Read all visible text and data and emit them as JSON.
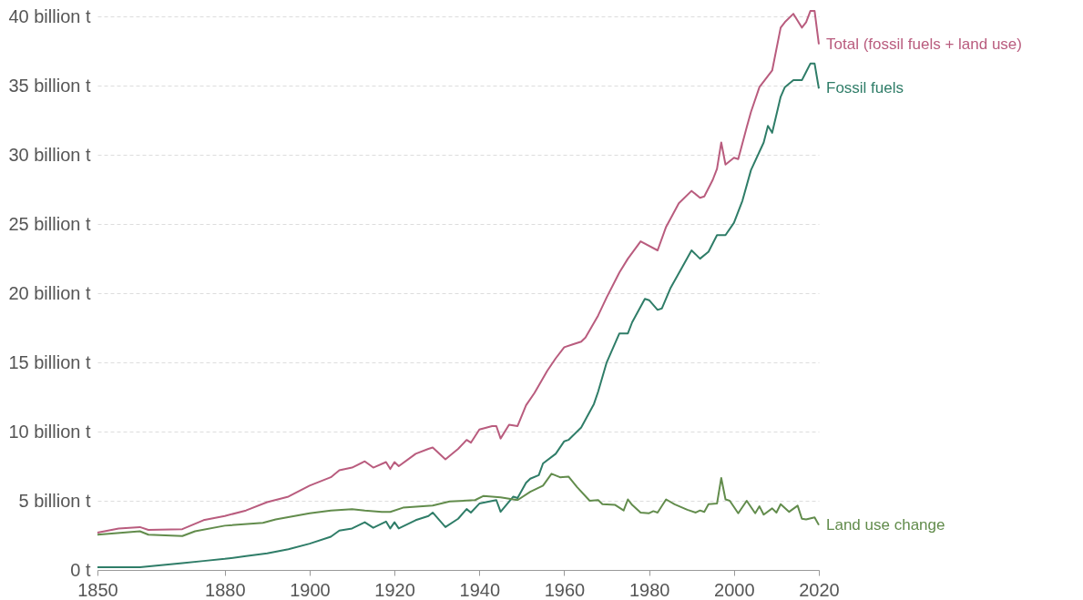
{
  "chart_data": {
    "type": "line",
    "xlim": [
      1850,
      2020
    ],
    "xticks": [
      1850,
      1880,
      1900,
      1920,
      1940,
      1960,
      1980,
      2000,
      2020
    ],
    "ylim": [
      0,
      41
    ],
    "yticks": [
      {
        "value": 0,
        "label": "0 t"
      },
      {
        "value": 5,
        "label": "5 billion t"
      },
      {
        "value": 10,
        "label": "10 billion t"
      },
      {
        "value": 15,
        "label": "15 billion t"
      },
      {
        "value": 20,
        "label": "20 billion t"
      },
      {
        "value": 25,
        "label": "25 billion t"
      },
      {
        "value": 30,
        "label": "30 billion t"
      },
      {
        "value": 35,
        "label": "35 billion t"
      },
      {
        "value": 40,
        "label": "40 billion t"
      }
    ],
    "grid": "y",
    "legend": false,
    "series": [
      {
        "name": "Total (fossil fuels + land use)",
        "color": "#b95c7e",
        "x": [
          1850,
          1855,
          1860,
          1862,
          1870,
          1875,
          1880,
          1885,
          1890,
          1895,
          1900,
          1905,
          1907,
          1910,
          1913,
          1915,
          1918,
          1919,
          1920,
          1921,
          1925,
          1928,
          1929,
          1932,
          1935,
          1937,
          1938,
          1940,
          1943,
          1944,
          1945,
          1947,
          1949,
          1951,
          1953,
          1956,
          1958,
          1960,
          1962,
          1964,
          1965,
          1968,
          1970,
          1973,
          1975,
          1978,
          1982,
          1984,
          1987,
          1990,
          1992,
          1993,
          1995,
          1996,
          1997,
          1998,
          2000,
          2001,
          2003,
          2004,
          2006,
          2009,
          2011,
          2012,
          2014,
          2016,
          2017,
          2018,
          2019,
          2020
        ],
        "values": [
          2.7,
          3.0,
          3.1,
          2.9,
          2.95,
          3.6,
          3.9,
          4.3,
          4.9,
          5.3,
          6.1,
          6.7,
          7.2,
          7.4,
          7.85,
          7.4,
          7.8,
          7.3,
          7.8,
          7.5,
          8.4,
          8.75,
          8.85,
          8.0,
          8.75,
          9.4,
          9.2,
          10.15,
          10.4,
          10.4,
          9.5,
          10.5,
          10.4,
          11.9,
          12.8,
          14.4,
          15.3,
          16.1,
          16.3,
          16.5,
          16.8,
          18.4,
          19.7,
          21.5,
          22.5,
          23.75,
          23.1,
          24.8,
          26.5,
          27.4,
          26.9,
          27.0,
          28.2,
          29.0,
          30.9,
          29.3,
          29.8,
          29.7,
          32.0,
          33.1,
          34.9,
          36.1,
          39.2,
          39.6,
          40.2,
          39.2,
          39.6,
          40.4,
          40.4,
          38.0
        ]
      },
      {
        "name": "Fossil fuels",
        "color": "#2f7d68",
        "x": [
          1850,
          1860,
          1870,
          1875,
          1880,
          1885,
          1890,
          1895,
          1900,
          1905,
          1907,
          1910,
          1913,
          1915,
          1918,
          1919,
          1920,
          1921,
          1925,
          1928,
          1929,
          1932,
          1935,
          1937,
          1938,
          1940,
          1944,
          1945,
          1948,
          1949,
          1951,
          1952,
          1954,
          1955,
          1958,
          1960,
          1961,
          1964,
          1967,
          1968,
          1970,
          1973,
          1975,
          1976,
          1979,
          1980,
          1982,
          1983,
          1985,
          1988,
          1990,
          1992,
          1994,
          1996,
          1998,
          2000,
          2002,
          2004,
          2007,
          2008,
          2009,
          2011,
          2012,
          2014,
          2016,
          2017,
          2018,
          2019,
          2020
        ],
        "values": [
          0.2,
          0.2,
          0.5,
          0.65,
          0.8,
          1.0,
          1.2,
          1.5,
          1.9,
          2.4,
          2.85,
          3.0,
          3.45,
          3.05,
          3.5,
          3.0,
          3.45,
          3.0,
          3.6,
          3.9,
          4.15,
          3.1,
          3.7,
          4.4,
          4.15,
          4.8,
          5.05,
          4.2,
          5.3,
          5.2,
          6.3,
          6.6,
          6.85,
          7.7,
          8.4,
          9.3,
          9.4,
          10.3,
          12.0,
          12.9,
          15.0,
          17.1,
          17.1,
          17.9,
          19.6,
          19.5,
          18.8,
          18.9,
          20.35,
          22.0,
          23.1,
          22.5,
          23.0,
          24.2,
          24.2,
          25.1,
          26.7,
          28.9,
          30.9,
          32.1,
          31.6,
          34.2,
          34.9,
          35.4,
          35.4,
          36.0,
          36.6,
          36.6,
          34.8
        ]
      },
      {
        "name": "Land use change",
        "color": "#628c4c",
        "x": [
          1850,
          1860,
          1862,
          1870,
          1873,
          1880,
          1889,
          1892,
          1900,
          1905,
          1910,
          1913,
          1917,
          1919,
          1922,
          1929,
          1933,
          1939,
          1941,
          1945,
          1949,
          1952,
          1955,
          1957,
          1959,
          1961,
          1963,
          1966,
          1968,
          1969,
          1972,
          1974,
          1975,
          1976,
          1978,
          1980,
          1981,
          1982,
          1984,
          1986,
          1989,
          1991,
          1992,
          1993,
          1994,
          1996,
          1997,
          1998,
          1999,
          2001,
          2003,
          2005,
          2006,
          2007,
          2009,
          2010,
          2011,
          2013,
          2015,
          2016,
          2017,
          2019,
          2020
        ],
        "values": [
          2.55,
          2.8,
          2.55,
          2.45,
          2.8,
          3.2,
          3.4,
          3.65,
          4.1,
          4.3,
          4.4,
          4.3,
          4.2,
          4.2,
          4.5,
          4.65,
          4.95,
          5.05,
          5.35,
          5.25,
          5.05,
          5.65,
          6.1,
          6.95,
          6.7,
          6.75,
          6.0,
          5.0,
          5.05,
          4.75,
          4.7,
          4.3,
          5.1,
          4.7,
          4.15,
          4.1,
          4.25,
          4.15,
          5.1,
          4.75,
          4.35,
          4.15,
          4.3,
          4.2,
          4.75,
          4.8,
          6.65,
          5.1,
          5.0,
          4.1,
          5.0,
          4.1,
          4.6,
          4.0,
          4.45,
          4.15,
          4.75,
          4.2,
          4.65,
          3.7,
          3.65,
          3.8,
          3.25
        ]
      }
    ]
  }
}
